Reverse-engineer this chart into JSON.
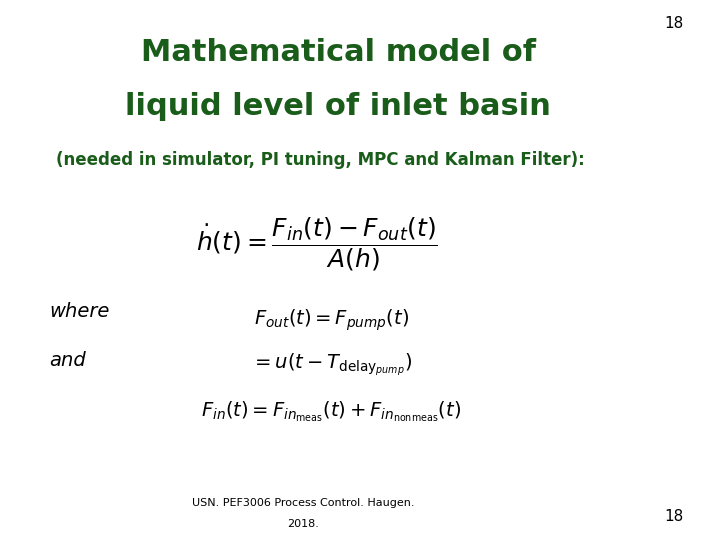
{
  "title_line1": "Mathematical model of",
  "title_line2": "liquid level of inlet basin",
  "title_color": "#1a5c1a",
  "subtitle": "(needed in simulator, PI tuning, MPC and Kalman Filter):",
  "subtitle_color": "#1a5c1a",
  "slide_number": "18",
  "footer_line1": "USN. PEF3006 Process Control. Haugen.",
  "footer_line2": "2018.",
  "bg_color": "#ffffff",
  "eq1": "$\\dot{h}(t) = \\dfrac{F_{in}(t) - F_{out}(t)}{A(h)}$",
  "eq2a": "$F_{out}(t) = F_{pump}(t)$",
  "eq2b": "$= u(t - T_{\\mathrm{delay}_{pump}})$",
  "eq3": "$F_{in}(t) = F_{{in}_{\\mathrm{meas}}}(t) + F_{{in}_{\\mathrm{nonmeas}}}(t)$",
  "where_text": "where",
  "and_text": "and"
}
